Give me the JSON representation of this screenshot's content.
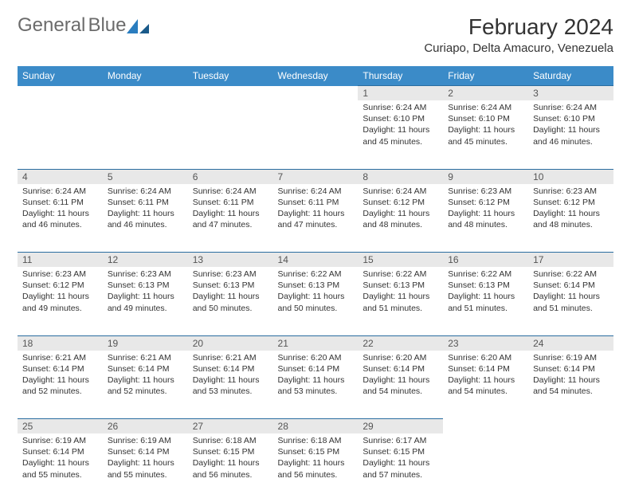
{
  "logo": {
    "word1": "General",
    "word2": "Blue"
  },
  "title": "February 2024",
  "location": "Curiapo, Delta Amacuro, Venezuela",
  "colors": {
    "header_bg": "#3b8bc8",
    "header_border": "#2a6da0",
    "daynum_bg": "#e8e8e8",
    "logo_gray": "#6b6b6b",
    "logo_blue": "#2a7dbf"
  },
  "weekdays": [
    "Sunday",
    "Monday",
    "Tuesday",
    "Wednesday",
    "Thursday",
    "Friday",
    "Saturday"
  ],
  "weeks": [
    {
      "nums": [
        "",
        "",
        "",
        "",
        "1",
        "2",
        "3"
      ],
      "data": [
        null,
        null,
        null,
        null,
        {
          "sunrise": "Sunrise: 6:24 AM",
          "sunset": "Sunset: 6:10 PM",
          "dl1": "Daylight: 11 hours",
          "dl2": "and 45 minutes."
        },
        {
          "sunrise": "Sunrise: 6:24 AM",
          "sunset": "Sunset: 6:10 PM",
          "dl1": "Daylight: 11 hours",
          "dl2": "and 45 minutes."
        },
        {
          "sunrise": "Sunrise: 6:24 AM",
          "sunset": "Sunset: 6:10 PM",
          "dl1": "Daylight: 11 hours",
          "dl2": "and 46 minutes."
        }
      ]
    },
    {
      "nums": [
        "4",
        "5",
        "6",
        "7",
        "8",
        "9",
        "10"
      ],
      "data": [
        {
          "sunrise": "Sunrise: 6:24 AM",
          "sunset": "Sunset: 6:11 PM",
          "dl1": "Daylight: 11 hours",
          "dl2": "and 46 minutes."
        },
        {
          "sunrise": "Sunrise: 6:24 AM",
          "sunset": "Sunset: 6:11 PM",
          "dl1": "Daylight: 11 hours",
          "dl2": "and 46 minutes."
        },
        {
          "sunrise": "Sunrise: 6:24 AM",
          "sunset": "Sunset: 6:11 PM",
          "dl1": "Daylight: 11 hours",
          "dl2": "and 47 minutes."
        },
        {
          "sunrise": "Sunrise: 6:24 AM",
          "sunset": "Sunset: 6:11 PM",
          "dl1": "Daylight: 11 hours",
          "dl2": "and 47 minutes."
        },
        {
          "sunrise": "Sunrise: 6:24 AM",
          "sunset": "Sunset: 6:12 PM",
          "dl1": "Daylight: 11 hours",
          "dl2": "and 48 minutes."
        },
        {
          "sunrise": "Sunrise: 6:23 AM",
          "sunset": "Sunset: 6:12 PM",
          "dl1": "Daylight: 11 hours",
          "dl2": "and 48 minutes."
        },
        {
          "sunrise": "Sunrise: 6:23 AM",
          "sunset": "Sunset: 6:12 PM",
          "dl1": "Daylight: 11 hours",
          "dl2": "and 48 minutes."
        }
      ]
    },
    {
      "nums": [
        "11",
        "12",
        "13",
        "14",
        "15",
        "16",
        "17"
      ],
      "data": [
        {
          "sunrise": "Sunrise: 6:23 AM",
          "sunset": "Sunset: 6:12 PM",
          "dl1": "Daylight: 11 hours",
          "dl2": "and 49 minutes."
        },
        {
          "sunrise": "Sunrise: 6:23 AM",
          "sunset": "Sunset: 6:13 PM",
          "dl1": "Daylight: 11 hours",
          "dl2": "and 49 minutes."
        },
        {
          "sunrise": "Sunrise: 6:23 AM",
          "sunset": "Sunset: 6:13 PM",
          "dl1": "Daylight: 11 hours",
          "dl2": "and 50 minutes."
        },
        {
          "sunrise": "Sunrise: 6:22 AM",
          "sunset": "Sunset: 6:13 PM",
          "dl1": "Daylight: 11 hours",
          "dl2": "and 50 minutes."
        },
        {
          "sunrise": "Sunrise: 6:22 AM",
          "sunset": "Sunset: 6:13 PM",
          "dl1": "Daylight: 11 hours",
          "dl2": "and 51 minutes."
        },
        {
          "sunrise": "Sunrise: 6:22 AM",
          "sunset": "Sunset: 6:13 PM",
          "dl1": "Daylight: 11 hours",
          "dl2": "and 51 minutes."
        },
        {
          "sunrise": "Sunrise: 6:22 AM",
          "sunset": "Sunset: 6:14 PM",
          "dl1": "Daylight: 11 hours",
          "dl2": "and 51 minutes."
        }
      ]
    },
    {
      "nums": [
        "18",
        "19",
        "20",
        "21",
        "22",
        "23",
        "24"
      ],
      "data": [
        {
          "sunrise": "Sunrise: 6:21 AM",
          "sunset": "Sunset: 6:14 PM",
          "dl1": "Daylight: 11 hours",
          "dl2": "and 52 minutes."
        },
        {
          "sunrise": "Sunrise: 6:21 AM",
          "sunset": "Sunset: 6:14 PM",
          "dl1": "Daylight: 11 hours",
          "dl2": "and 52 minutes."
        },
        {
          "sunrise": "Sunrise: 6:21 AM",
          "sunset": "Sunset: 6:14 PM",
          "dl1": "Daylight: 11 hours",
          "dl2": "and 53 minutes."
        },
        {
          "sunrise": "Sunrise: 6:20 AM",
          "sunset": "Sunset: 6:14 PM",
          "dl1": "Daylight: 11 hours",
          "dl2": "and 53 minutes."
        },
        {
          "sunrise": "Sunrise: 6:20 AM",
          "sunset": "Sunset: 6:14 PM",
          "dl1": "Daylight: 11 hours",
          "dl2": "and 54 minutes."
        },
        {
          "sunrise": "Sunrise: 6:20 AM",
          "sunset": "Sunset: 6:14 PM",
          "dl1": "Daylight: 11 hours",
          "dl2": "and 54 minutes."
        },
        {
          "sunrise": "Sunrise: 6:19 AM",
          "sunset": "Sunset: 6:14 PM",
          "dl1": "Daylight: 11 hours",
          "dl2": "and 54 minutes."
        }
      ]
    },
    {
      "nums": [
        "25",
        "26",
        "27",
        "28",
        "29",
        "",
        ""
      ],
      "data": [
        {
          "sunrise": "Sunrise: 6:19 AM",
          "sunset": "Sunset: 6:14 PM",
          "dl1": "Daylight: 11 hours",
          "dl2": "and 55 minutes."
        },
        {
          "sunrise": "Sunrise: 6:19 AM",
          "sunset": "Sunset: 6:14 PM",
          "dl1": "Daylight: 11 hours",
          "dl2": "and 55 minutes."
        },
        {
          "sunrise": "Sunrise: 6:18 AM",
          "sunset": "Sunset: 6:15 PM",
          "dl1": "Daylight: 11 hours",
          "dl2": "and 56 minutes."
        },
        {
          "sunrise": "Sunrise: 6:18 AM",
          "sunset": "Sunset: 6:15 PM",
          "dl1": "Daylight: 11 hours",
          "dl2": "and 56 minutes."
        },
        {
          "sunrise": "Sunrise: 6:17 AM",
          "sunset": "Sunset: 6:15 PM",
          "dl1": "Daylight: 11 hours",
          "dl2": "and 57 minutes."
        },
        null,
        null
      ]
    }
  ]
}
